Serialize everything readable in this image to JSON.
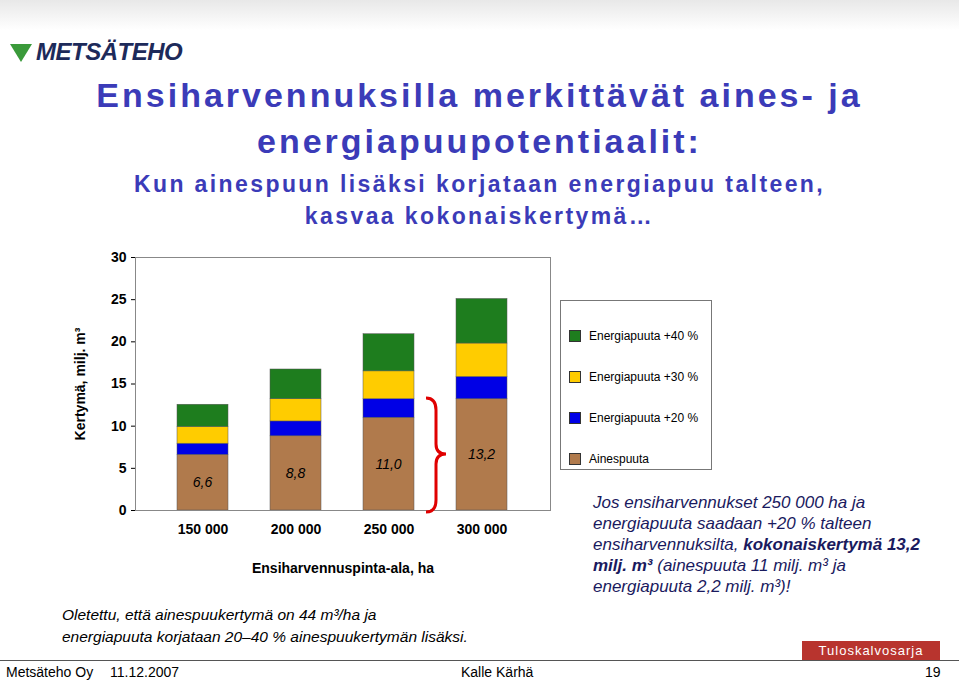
{
  "logo": "METSÄTEHO",
  "chart_data": {
    "type": "bar",
    "stacked": true,
    "title": [
      "Ensiharvennuksilla merkittävät aines- ja",
      "energiapuupotentiaalit:"
    ],
    "subtitle": [
      "Kun ainespuun lisäksi korjataan energiapuu talteen,",
      "kasvaa kokonaiskertymä…"
    ],
    "x_label": "Ensiharvennuspinta-ala, ha",
    "y_label": "Kertymä, milj. m³",
    "categories": [
      "150 000",
      "200 000",
      "250 000",
      "300 000"
    ],
    "ylim": [
      0,
      30
    ],
    "yticks": [
      0,
      5,
      10,
      15,
      20,
      25,
      30
    ],
    "legend": "right",
    "series": [
      {
        "name": "Ainespuuta",
        "color": "#b07a4c",
        "values": [
          6.6,
          8.8,
          11.0,
          13.2
        ],
        "value_labels": [
          "6,6",
          "8,8",
          "11,0",
          "13,2"
        ],
        "data_labels": true
      },
      {
        "name": "Energiapuuta +20 %",
        "color": "#0000e6",
        "values": [
          1.32,
          1.76,
          2.2,
          2.64
        ]
      },
      {
        "name": "Energiapuuta +30 %",
        "color": "#ffcc00",
        "values": [
          1.98,
          2.64,
          3.3,
          3.96
        ]
      },
      {
        "name": "Energiapuuta +40 %",
        "color": "#1e7d1e",
        "values": [
          2.64,
          3.52,
          4.4,
          5.28
        ]
      }
    ],
    "annotations": {
      "note": [
        "Oletettu, että ainespuukertymä on 44 m³/ha ja",
        "energiapuuta korjataan 20–40 % ainespuukertymän lisäksi."
      ],
      "highlight": {
        "before": "Jos ensiharvennukset 250 000 ha ja energiapuuta saadaan +20 % talteen ensiharvennuksilta,",
        "emphasis": "kokonaiskertymä 13,2 milj. m³",
        "after": "(ainespuuta 11 milj. m³ ja energiapuuta 2,2 milj. m³)!"
      }
    }
  },
  "footer": {
    "company": "Metsäteho Oy",
    "date": "11.12.2007",
    "author": "Kalle Kärhä",
    "series": "Tuloskalvosarja",
    "page": "19"
  }
}
